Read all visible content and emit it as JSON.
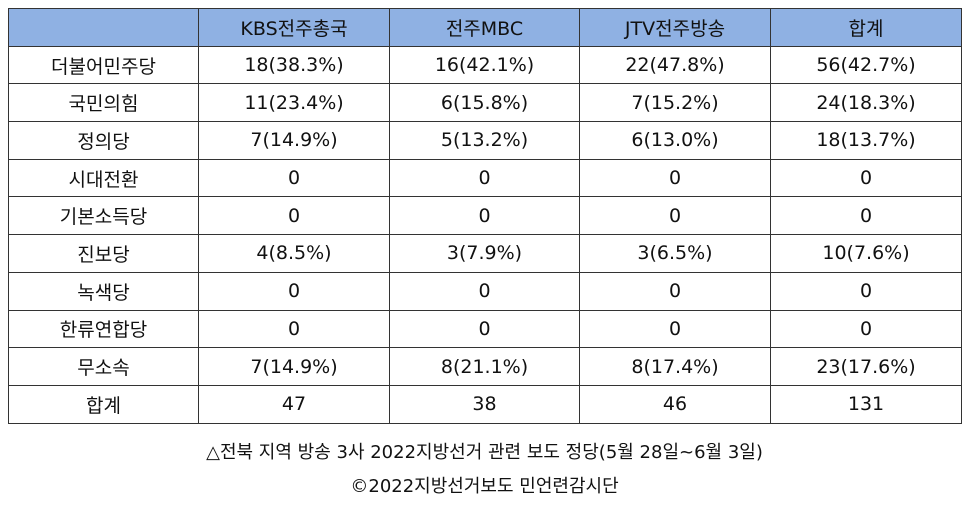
{
  "table": {
    "headers": [
      "",
      "KBS전주총국",
      "전주MBC",
      "JTV전주방송",
      "합계"
    ],
    "header_color": "#8fb1e3",
    "rows": [
      [
        "더불어민주당",
        "18(38.3%)",
        "16(42.1%)",
        "22(47.8%)",
        "56(42.7%)"
      ],
      [
        "국민의힘",
        "11(23.4%)",
        "6(15.8%)",
        "7(15.2%)",
        "24(18.3%)"
      ],
      [
        "정의당",
        "7(14.9%)",
        "5(13.2%)",
        "6(13.0%)",
        "18(13.7%)"
      ],
      [
        "시대전환",
        "0",
        "0",
        "0",
        "0"
      ],
      [
        "기본소득당",
        "0",
        "0",
        "0",
        "0"
      ],
      [
        "진보당",
        "4(8.5%)",
        "3(7.9%)",
        "3(6.5%)",
        "10(7.6%)"
      ],
      [
        "녹색당",
        "0",
        "0",
        "0",
        "0"
      ],
      [
        "한류연합당",
        "0",
        "0",
        "0",
        "0"
      ],
      [
        "무소속",
        "7(14.9%)",
        "8(21.1%)",
        "8(17.4%)",
        "23(17.6%)"
      ],
      [
        "합계",
        "47",
        "38",
        "46",
        "131"
      ]
    ]
  },
  "caption": {
    "line1": "△전북 지역 방송 3사 2022지방선거 관련 보도 정당(5월 28일~6월 3일)",
    "line2": "©2022지방선거보도 민언련감시단"
  }
}
